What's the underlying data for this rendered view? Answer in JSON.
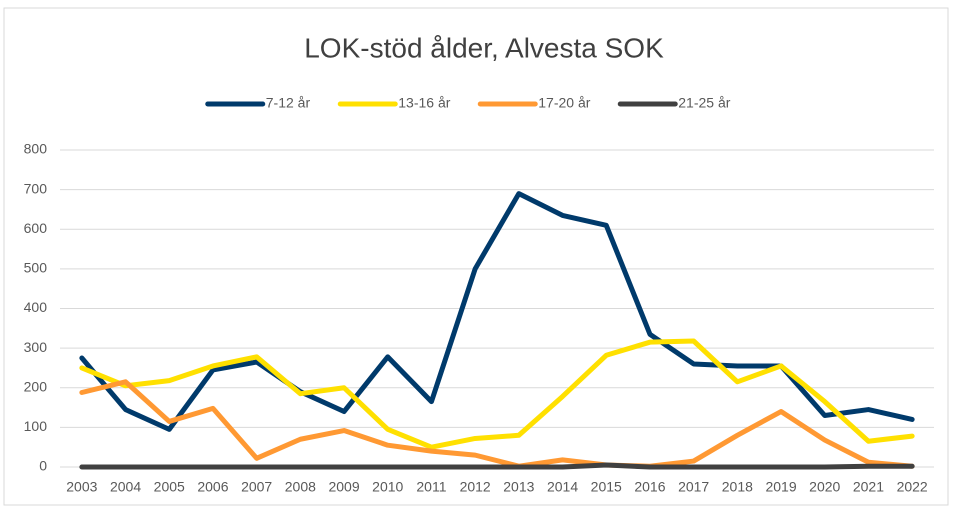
{
  "chart_data": {
    "type": "line",
    "title": "LOK-stöd ålder, Alvesta SOK",
    "categories": [
      "2003",
      "2004",
      "2005",
      "2006",
      "2007",
      "2008",
      "2009",
      "2010",
      "2011",
      "2012",
      "2013",
      "2014",
      "2015",
      "2016",
      "2017",
      "2018",
      "2019",
      "2020",
      "2021",
      "2022"
    ],
    "series": [
      {
        "name": "7-12 år",
        "color": "#003a6b",
        "values": [
          275,
          145,
          95,
          245,
          265,
          190,
          140,
          278,
          165,
          500,
          690,
          635,
          610,
          335,
          260,
          255,
          255,
          130,
          145,
          120
        ]
      },
      {
        "name": "13-16 år",
        "color": "#ffe000",
        "values": [
          250,
          205,
          218,
          255,
          278,
          185,
          200,
          95,
          50,
          72,
          80,
          178,
          282,
          315,
          318,
          215,
          255,
          165,
          65,
          78
        ]
      },
      {
        "name": "17-20 år",
        "color": "#ff9933",
        "values": [
          188,
          215,
          115,
          148,
          22,
          70,
          92,
          55,
          40,
          30,
          2,
          18,
          5,
          2,
          15,
          80,
          140,
          68,
          12,
          2
        ]
      },
      {
        "name": "21-25 år",
        "color": "#404040",
        "values": [
          0,
          0,
          0,
          0,
          0,
          0,
          0,
          0,
          0,
          0,
          0,
          0,
          5,
          0,
          0,
          0,
          0,
          0,
          2,
          2
        ]
      }
    ],
    "ylim": [
      0,
      800
    ],
    "yticks": [
      0,
      100,
      200,
      300,
      400,
      500,
      600,
      700,
      800
    ],
    "grid": true,
    "legend": "top"
  }
}
